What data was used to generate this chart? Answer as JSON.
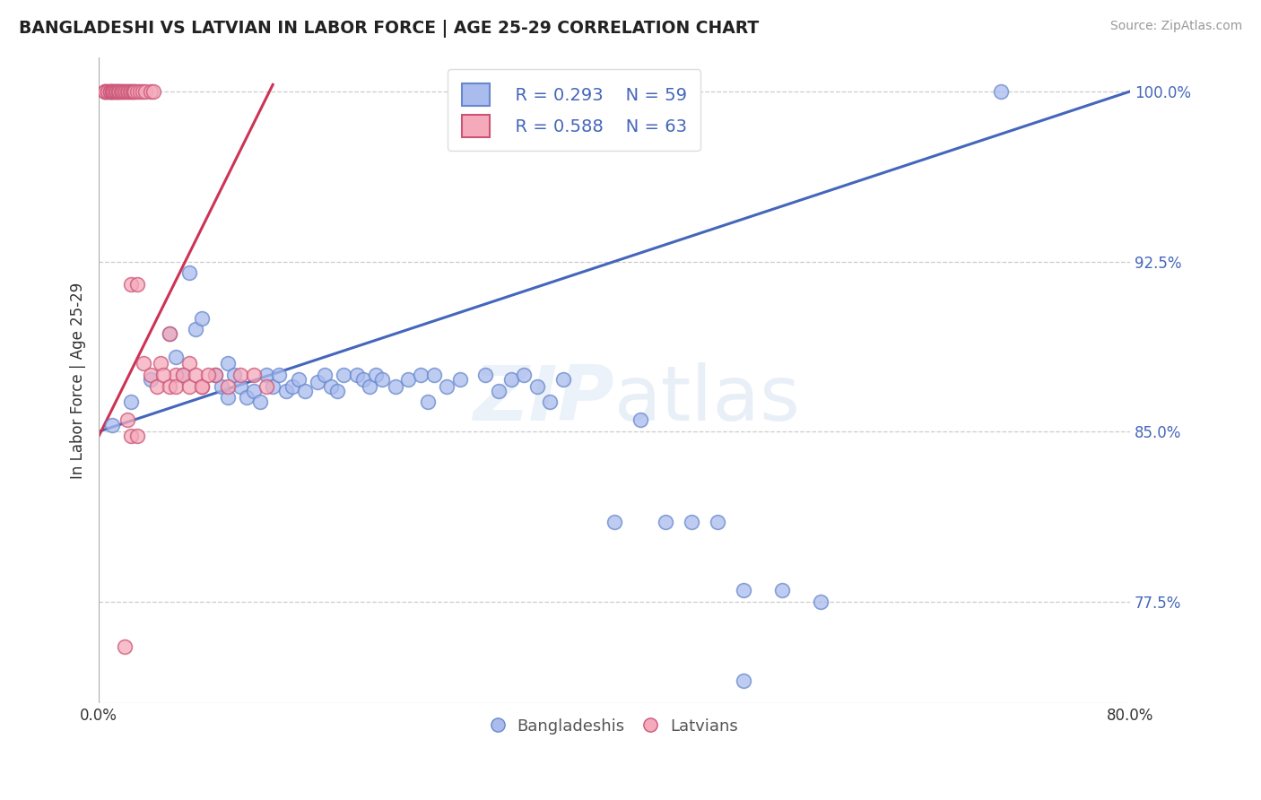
{
  "title": "BANGLADESHI VS LATVIAN IN LABOR FORCE | AGE 25-29 CORRELATION CHART",
  "source": "Source: ZipAtlas.com",
  "ylabel": "In Labor Force | Age 25-29",
  "xlim": [
    0.0,
    0.8
  ],
  "ylim": [
    0.73,
    1.015
  ],
  "grid_color": "#cccccc",
  "background_color": "#ffffff",
  "legend_r1": "R = 0.293",
  "legend_n1": "N = 59",
  "legend_r2": "R = 0.588",
  "legend_n2": "N = 63",
  "blue_color": "#aabbee",
  "pink_color": "#f5aabb",
  "blue_edge_color": "#6688cc",
  "pink_edge_color": "#cc5577",
  "blue_line_color": "#4466bb",
  "pink_line_color": "#cc3355",
  "tick_color": "#4466bb",
  "blue_trend_x": [
    0.0,
    0.8
  ],
  "blue_trend_y": [
    0.85,
    1.0
  ],
  "pink_trend_x": [
    0.0,
    0.135
  ],
  "pink_trend_y": [
    0.848,
    1.003
  ],
  "blue_scatter_x": [
    0.01,
    0.025,
    0.04,
    0.055,
    0.06,
    0.065,
    0.07,
    0.075,
    0.08,
    0.09,
    0.095,
    0.1,
    0.1,
    0.105,
    0.11,
    0.115,
    0.12,
    0.125,
    0.13,
    0.135,
    0.14,
    0.145,
    0.15,
    0.155,
    0.16,
    0.17,
    0.175,
    0.18,
    0.185,
    0.19,
    0.2,
    0.205,
    0.21,
    0.215,
    0.22,
    0.23,
    0.24,
    0.25,
    0.255,
    0.26,
    0.27,
    0.28,
    0.3,
    0.31,
    0.32,
    0.33,
    0.34,
    0.35,
    0.36,
    0.4,
    0.42,
    0.44,
    0.46,
    0.48,
    0.5,
    0.53,
    0.56,
    0.7,
    0.5
  ],
  "blue_scatter_y": [
    0.853,
    0.863,
    0.873,
    0.893,
    0.883,
    0.875,
    0.92,
    0.895,
    0.9,
    0.875,
    0.87,
    0.865,
    0.88,
    0.875,
    0.87,
    0.865,
    0.868,
    0.863,
    0.875,
    0.87,
    0.875,
    0.868,
    0.87,
    0.873,
    0.868,
    0.872,
    0.875,
    0.87,
    0.868,
    0.875,
    0.875,
    0.873,
    0.87,
    0.875,
    0.873,
    0.87,
    0.873,
    0.875,
    0.863,
    0.875,
    0.87,
    0.873,
    0.875,
    0.868,
    0.873,
    0.875,
    0.87,
    0.863,
    0.873,
    0.81,
    0.855,
    0.81,
    0.81,
    0.81,
    0.78,
    0.78,
    0.775,
    1.0,
    0.74
  ],
  "pink_scatter_x": [
    0.005,
    0.005,
    0.005,
    0.007,
    0.007,
    0.009,
    0.009,
    0.009,
    0.01,
    0.01,
    0.011,
    0.012,
    0.013,
    0.013,
    0.014,
    0.015,
    0.015,
    0.016,
    0.017,
    0.018,
    0.019,
    0.02,
    0.021,
    0.022,
    0.023,
    0.024,
    0.025,
    0.026,
    0.027,
    0.028,
    0.03,
    0.032,
    0.034,
    0.036,
    0.04,
    0.042,
    0.048,
    0.055,
    0.06,
    0.07,
    0.08,
    0.09,
    0.1,
    0.11,
    0.12,
    0.13,
    0.025,
    0.03,
    0.035,
    0.04,
    0.045,
    0.05,
    0.055,
    0.06,
    0.065,
    0.07,
    0.075,
    0.08,
    0.085,
    0.022,
    0.025,
    0.03,
    0.02
  ],
  "pink_scatter_y": [
    1.0,
    1.0,
    1.0,
    1.0,
    1.0,
    1.0,
    1.0,
    1.0,
    1.0,
    1.0,
    1.0,
    1.0,
    1.0,
    1.0,
    1.0,
    1.0,
    1.0,
    1.0,
    1.0,
    1.0,
    1.0,
    1.0,
    1.0,
    1.0,
    1.0,
    1.0,
    1.0,
    1.0,
    1.0,
    1.0,
    1.0,
    1.0,
    1.0,
    1.0,
    1.0,
    1.0,
    0.88,
    0.893,
    0.875,
    0.88,
    0.87,
    0.875,
    0.87,
    0.875,
    0.875,
    0.87,
    0.915,
    0.915,
    0.88,
    0.875,
    0.87,
    0.875,
    0.87,
    0.87,
    0.875,
    0.87,
    0.875,
    0.87,
    0.875,
    0.855,
    0.848,
    0.848,
    0.755
  ]
}
